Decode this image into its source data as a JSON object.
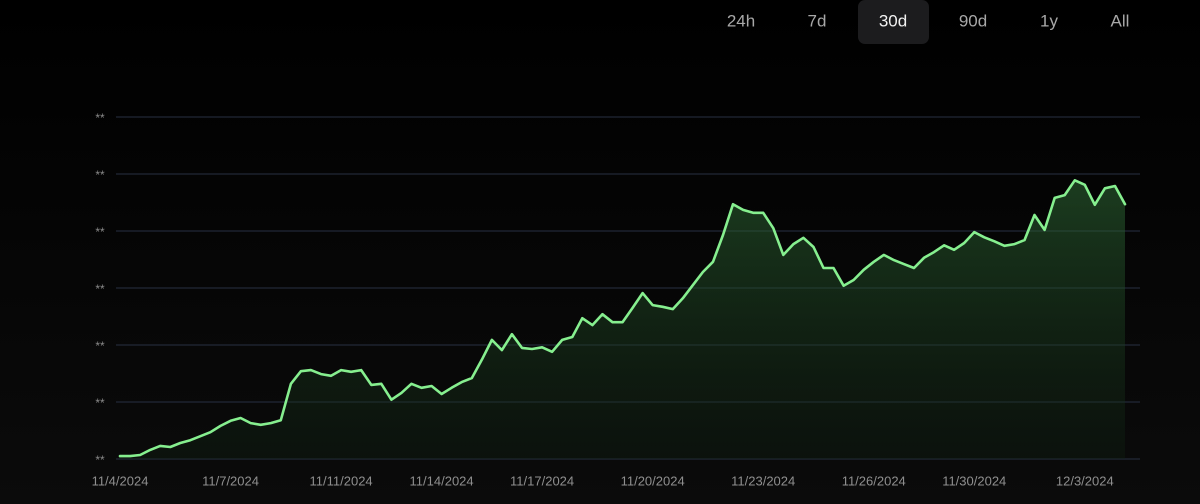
{
  "range_buttons": {
    "options": [
      "24h",
      "7d",
      "30d",
      "90d",
      "1y",
      "All"
    ],
    "selected_index": 2
  },
  "chart_data": {
    "type": "line",
    "area": true,
    "grid": true,
    "categories": [
      "11/4/2024",
      null,
      null,
      null,
      null,
      null,
      null,
      null,
      null,
      null,
      null,
      "11/7/2024",
      null,
      null,
      null,
      null,
      null,
      null,
      null,
      null,
      null,
      null,
      "11/11/2024",
      null,
      null,
      null,
      null,
      null,
      null,
      null,
      null,
      null,
      "11/14/2024",
      null,
      null,
      null,
      null,
      null,
      null,
      null,
      null,
      null,
      "11/17/2024",
      null,
      null,
      null,
      null,
      null,
      null,
      null,
      null,
      null,
      null,
      "11/20/2024",
      null,
      null,
      null,
      null,
      null,
      null,
      null,
      null,
      null,
      null,
      "11/23/2024",
      null,
      null,
      null,
      null,
      null,
      null,
      null,
      null,
      null,
      null,
      "11/26/2024",
      null,
      null,
      null,
      null,
      null,
      null,
      null,
      null,
      null,
      "11/30/2024",
      null,
      null,
      null,
      null,
      null,
      null,
      null,
      null,
      null,
      null,
      "12/3/2024",
      null,
      null,
      null,
      null
    ],
    "series": [
      {
        "color": "#86ef8f",
        "values": [
          0.05,
          0.05,
          0.07,
          0.16,
          0.23,
          0.21,
          0.28,
          0.33,
          0.4,
          0.47,
          0.58,
          0.67,
          0.72,
          0.63,
          0.6,
          0.63,
          0.68,
          1.32,
          1.54,
          1.56,
          1.49,
          1.46,
          1.56,
          1.53,
          1.56,
          1.3,
          1.32,
          1.04,
          1.16,
          1.32,
          1.25,
          1.28,
          1.14,
          1.25,
          1.35,
          1.42,
          1.74,
          2.09,
          1.91,
          2.19,
          1.95,
          1.93,
          1.96,
          1.88,
          2.09,
          2.14,
          2.47,
          2.35,
          2.54,
          2.4,
          2.4,
          2.65,
          2.91,
          2.7,
          2.67,
          2.63,
          2.82,
          3.05,
          3.28,
          3.46,
          3.93,
          4.47,
          4.37,
          4.32,
          4.32,
          4.05,
          3.58,
          3.77,
          3.88,
          3.72,
          3.35,
          3.35,
          3.04,
          3.14,
          3.32,
          3.46,
          3.58,
          3.49,
          3.42,
          3.35,
          3.53,
          3.63,
          3.75,
          3.67,
          3.79,
          3.98,
          3.89,
          3.82,
          3.74,
          3.77,
          3.84,
          4.28,
          4.02,
          4.58,
          4.63,
          4.89,
          4.81,
          4.46,
          4.75,
          4.79,
          4.47
        ]
      }
    ],
    "ylim": [
      0,
      6
    ],
    "yticks": [
      {
        "value": 0,
        "label": "**"
      },
      {
        "value": 1,
        "label": "**"
      },
      {
        "value": 2,
        "label": "**"
      },
      {
        "value": 3,
        "label": "**"
      },
      {
        "value": 4,
        "label": "**"
      },
      {
        "value": 5,
        "label": "**"
      },
      {
        "value": 6,
        "label": "**"
      }
    ]
  }
}
